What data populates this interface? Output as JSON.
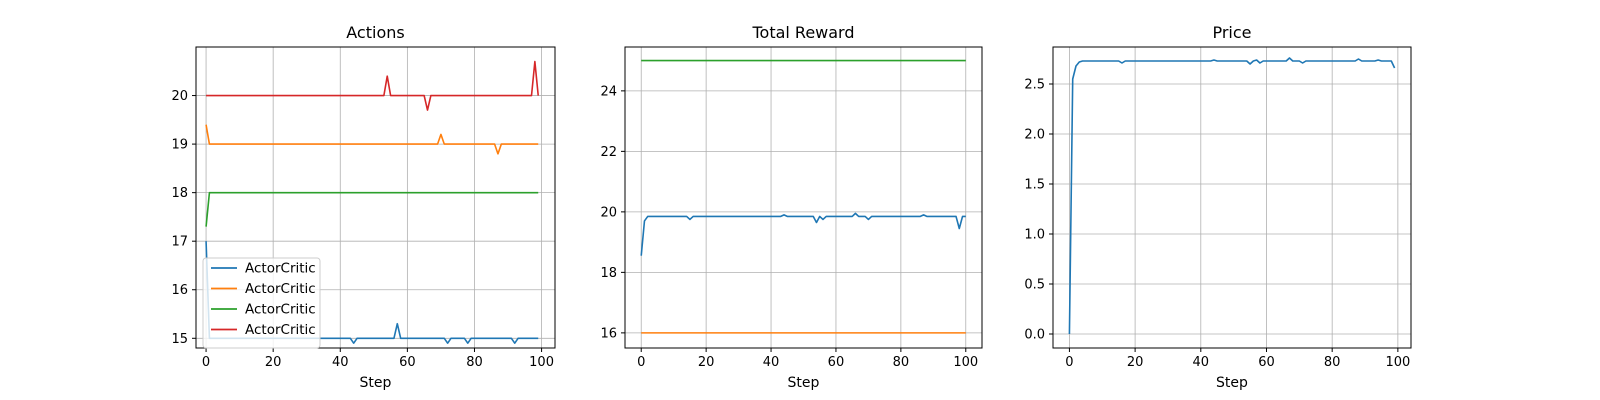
{
  "figure": {
    "xlabel_common": "Step"
  },
  "chart_data": [
    {
      "type": "line",
      "title": "Actions",
      "xlabel": "Step",
      "ylabel": "",
      "xlim": [
        -3,
        104
      ],
      "ylim": [
        14.8,
        21.0
      ],
      "xticks": [
        0,
        20,
        40,
        60,
        80,
        100
      ],
      "yticks": [
        15,
        16,
        17,
        18,
        19,
        20
      ],
      "grid": true,
      "legend": {
        "placement": "lower-left",
        "entries": [
          "ActorCritic",
          "ActorCritic",
          "ActorCritic",
          "ActorCritic"
        ]
      },
      "series": [
        {
          "name": "ActorCritic",
          "color": "#1f77b4",
          "base": 15.0,
          "start": 17.0,
          "spikes": [
            [
              1,
              15.0
            ],
            [
              44,
              14.9
            ],
            [
              57,
              15.3
            ],
            [
              72,
              14.9
            ],
            [
              78,
              14.9
            ],
            [
              92,
              14.9
            ]
          ]
        },
        {
          "name": "ActorCritic",
          "color": "#ff7f0e",
          "base": 19.0,
          "start": 19.4,
          "spikes": [
            [
              70,
              19.2
            ],
            [
              87,
              18.8
            ]
          ]
        },
        {
          "name": "ActorCritic",
          "color": "#2ca02c",
          "base": 18.0,
          "start": 17.3,
          "spikes": []
        },
        {
          "name": "ActorCritic",
          "color": "#d62728",
          "base": 20.0,
          "start": 20.0,
          "spikes": [
            [
              54,
              20.4
            ],
            [
              66,
              19.7
            ],
            [
              98,
              20.7
            ]
          ]
        }
      ],
      "n_points": 100
    },
    {
      "type": "line",
      "title": "Total Reward",
      "xlabel": "Step",
      "ylabel": "",
      "xlim": [
        -5,
        105
      ],
      "ylim": [
        15.5,
        25.45
      ],
      "xticks": [
        0,
        20,
        40,
        60,
        80,
        100
      ],
      "yticks": [
        16,
        18,
        20,
        22,
        24
      ],
      "grid": true,
      "series": [
        {
          "color": "#1f77b4",
          "base": 19.85,
          "start": 18.55,
          "spikes": [
            [
              1,
              19.7
            ],
            [
              15,
              19.75
            ],
            [
              44,
              19.9
            ],
            [
              54,
              19.65
            ],
            [
              56,
              19.75
            ],
            [
              66,
              19.95
            ],
            [
              70,
              19.75
            ],
            [
              87,
              19.9
            ],
            [
              98,
              19.45
            ],
            [
              100,
              19.85
            ]
          ]
        },
        {
          "color": "#ff7f0e",
          "base": 16.0,
          "start": 16.0,
          "spikes": []
        },
        {
          "color": "#2ca02c",
          "base": 25.0,
          "start": 25.0,
          "spikes": []
        }
      ],
      "n_points": 101
    },
    {
      "type": "line",
      "title": "Price",
      "xlabel": "Step",
      "ylabel": "",
      "xlim": [
        -5,
        104
      ],
      "ylim": [
        -0.14,
        2.87
      ],
      "xticks": [
        0,
        20,
        40,
        60,
        80,
        100
      ],
      "yticks": [
        0.0,
        0.5,
        1.0,
        1.5,
        2.0,
        2.5
      ],
      "ytick_labels": [
        "0.0",
        "0.5",
        "1.0",
        "1.5",
        "2.0",
        "2.5"
      ],
      "grid": true,
      "series": [
        {
          "color": "#1f77b4",
          "base": 2.73,
          "start": 0.0,
          "spikes": [
            [
              1,
              2.55
            ],
            [
              2,
              2.68
            ],
            [
              3,
              2.72
            ],
            [
              16,
              2.71
            ],
            [
              44,
              2.74
            ],
            [
              55,
              2.7
            ],
            [
              57,
              2.74
            ],
            [
              58,
              2.71
            ],
            [
              67,
              2.76
            ],
            [
              71,
              2.71
            ],
            [
              88,
              2.75
            ],
            [
              94,
              2.74
            ],
            [
              99,
              2.66
            ]
          ]
        }
      ],
      "n_points": 100
    }
  ]
}
